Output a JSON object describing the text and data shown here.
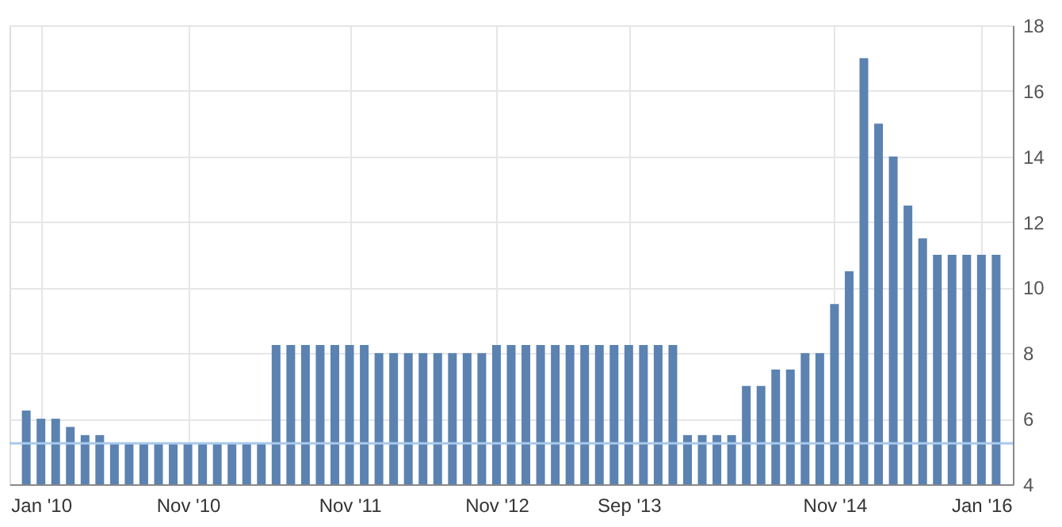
{
  "chart_data": {
    "type": "bar",
    "categories": [
      null,
      "Jan '10",
      null,
      null,
      null,
      null,
      null,
      null,
      null,
      null,
      null,
      "Nov '10",
      null,
      null,
      null,
      null,
      null,
      null,
      null,
      null,
      null,
      null,
      "Nov '11",
      null,
      null,
      null,
      null,
      null,
      null,
      null,
      null,
      null,
      "Nov '12",
      null,
      null,
      null,
      null,
      null,
      null,
      null,
      null,
      "Sep '13",
      null,
      null,
      null,
      null,
      null,
      null,
      null,
      null,
      null,
      null,
      null,
      null,
      null,
      "Nov '14",
      null,
      null,
      null,
      null,
      null,
      null,
      null,
      null,
      null,
      "Jan '16",
      null
    ],
    "values": [
      6.25,
      6.0,
      6.0,
      5.75,
      5.5,
      5.5,
      5.25,
      5.25,
      5.25,
      5.25,
      5.25,
      5.25,
      5.25,
      5.25,
      5.25,
      5.25,
      5.25,
      8.25,
      8.25,
      8.25,
      8.25,
      8.25,
      8.25,
      8.25,
      8.0,
      8.0,
      8.0,
      8.0,
      8.0,
      8.0,
      8.0,
      8.0,
      8.25,
      8.25,
      8.25,
      8.25,
      8.25,
      8.25,
      8.25,
      8.25,
      8.25,
      8.25,
      8.25,
      8.25,
      8.25,
      5.5,
      5.5,
      5.5,
      5.5,
      7.0,
      7.0,
      7.5,
      7.5,
      8.0,
      8.0,
      9.5,
      10.5,
      17.0,
      15.0,
      14.0,
      12.5,
      11.5,
      11.0,
      11.0,
      11.0,
      11.0,
      11.0
    ],
    "color": "#5b82b1",
    "ylim": [
      4,
      18
    ],
    "yticks": [
      4,
      6,
      8,
      10,
      12,
      14,
      16,
      18
    ],
    "grid": true,
    "ref_lines": [
      {
        "axis": "y",
        "value": 5.25,
        "color": "#a9c9ec"
      }
    ]
  }
}
